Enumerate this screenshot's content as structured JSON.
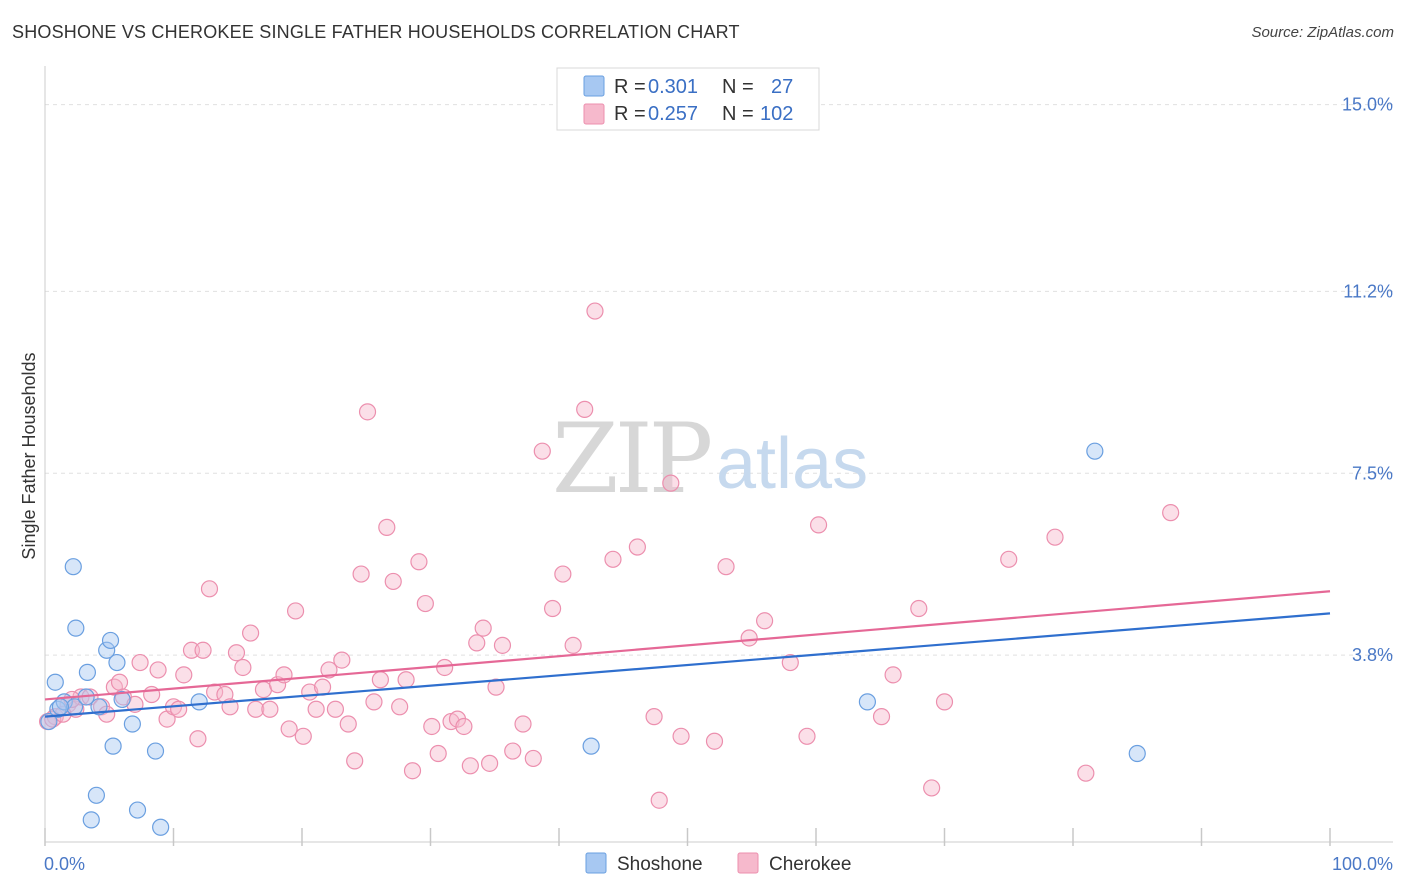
{
  "title": "SHOSHONE VS CHEROKEE SINGLE FATHER HOUSEHOLDS CORRELATION CHART",
  "source": "Source: ZipAtlas.com",
  "watermark": {
    "zip": "ZIP",
    "atlas": "atlas"
  },
  "legend": {
    "rows": [
      {
        "r_label": "R =",
        "r_value": "0.301",
        "n_label": "N =",
        "n_value": "27",
        "color": "#a7c8f2"
      },
      {
        "r_label": "R =",
        "r_value": "0.257",
        "n_label": "N =",
        "n_value": "102",
        "color": "#f6b9cc"
      }
    ]
  },
  "bottom_legend": [
    {
      "label": "Shoshone",
      "color": "#a7c8f2"
    },
    {
      "label": "Cherokee",
      "color": "#f6b9cc"
    }
  ],
  "chart_data": {
    "type": "scatter",
    "title": "SHOSHONE VS CHEROKEE SINGLE FATHER HOUSEHOLDS CORRELATION CHART",
    "xlabel": "",
    "ylabel": "Single Father Households",
    "xlim": [
      0,
      100
    ],
    "ylim": [
      0,
      15.5
    ],
    "x_tick_labels": [
      "0.0%",
      "100.0%"
    ],
    "y_ticks": [
      3.8,
      7.5,
      11.2,
      15.0
    ],
    "y_tick_labels": [
      "3.8%",
      "7.5%",
      "11.2%",
      "15.0%"
    ],
    "grid": true,
    "legend_position": "top-center",
    "series": [
      {
        "name": "Shoshone",
        "color": "#6a9fe0",
        "fill": "#a7c8f2",
        "trend": {
          "x": [
            0,
            100
          ],
          "y": [
            2.55,
            4.65
          ],
          "color": "#2f6fce"
        },
        "points": [
          [
            0.3,
            2.45
          ],
          [
            1.0,
            2.7
          ],
          [
            1.5,
            2.85
          ],
          [
            0.8,
            3.25
          ],
          [
            2.3,
            2.75
          ],
          [
            3.2,
            2.95
          ],
          [
            4.2,
            2.75
          ],
          [
            2.2,
            5.6
          ],
          [
            2.4,
            4.35
          ],
          [
            3.3,
            3.45
          ],
          [
            4.8,
            3.9
          ],
          [
            5.1,
            4.1
          ],
          [
            5.6,
            3.65
          ],
          [
            6.0,
            2.9
          ],
          [
            6.8,
            2.4
          ],
          [
            5.3,
            1.95
          ],
          [
            8.6,
            1.85
          ],
          [
            4.0,
            0.95
          ],
          [
            3.6,
            0.45
          ],
          [
            7.2,
            0.65
          ],
          [
            9.0,
            0.3
          ],
          [
            12.0,
            2.85
          ],
          [
            42.5,
            1.95
          ],
          [
            64.0,
            2.85
          ],
          [
            85.0,
            1.8
          ],
          [
            81.7,
            7.95
          ],
          [
            1.2,
            2.75
          ]
        ]
      },
      {
        "name": "Cherokee",
        "color": "#ec8fae",
        "fill": "#f6b9cc",
        "trend": {
          "x": [
            0,
            100
          ],
          "y": [
            2.9,
            5.1
          ],
          "color": "#e56896"
        },
        "points": [
          [
            0.2,
            2.45
          ],
          [
            0.8,
            2.55
          ],
          [
            1.8,
            2.8
          ],
          [
            2.4,
            2.7
          ],
          [
            2.8,
            2.95
          ],
          [
            3.5,
            2.95
          ],
          [
            4.4,
            2.75
          ],
          [
            4.8,
            2.6
          ],
          [
            5.4,
            3.15
          ],
          [
            5.8,
            3.25
          ],
          [
            6.1,
            2.95
          ],
          [
            7.0,
            2.8
          ],
          [
            7.4,
            3.65
          ],
          [
            8.3,
            3.0
          ],
          [
            8.8,
            3.5
          ],
          [
            9.5,
            2.5
          ],
          [
            10.0,
            2.75
          ],
          [
            10.4,
            2.7
          ],
          [
            10.8,
            3.4
          ],
          [
            11.4,
            3.9
          ],
          [
            11.9,
            2.1
          ],
          [
            12.3,
            3.9
          ],
          [
            12.8,
            5.15
          ],
          [
            13.2,
            3.05
          ],
          [
            14.0,
            3.0
          ],
          [
            14.4,
            2.75
          ],
          [
            14.9,
            3.85
          ],
          [
            15.4,
            3.55
          ],
          [
            16.0,
            4.25
          ],
          [
            16.4,
            2.7
          ],
          [
            17.0,
            3.1
          ],
          [
            17.5,
            2.7
          ],
          [
            18.1,
            3.2
          ],
          [
            18.6,
            3.4
          ],
          [
            19.0,
            2.3
          ],
          [
            19.5,
            4.7
          ],
          [
            20.1,
            2.15
          ],
          [
            20.6,
            3.05
          ],
          [
            21.1,
            2.7
          ],
          [
            21.6,
            3.15
          ],
          [
            22.1,
            3.5
          ],
          [
            22.6,
            2.7
          ],
          [
            23.1,
            3.7
          ],
          [
            23.6,
            2.4
          ],
          [
            24.1,
            1.65
          ],
          [
            24.6,
            5.45
          ],
          [
            25.1,
            8.75
          ],
          [
            25.6,
            2.85
          ],
          [
            26.1,
            3.3
          ],
          [
            26.6,
            6.4
          ],
          [
            27.1,
            5.3
          ],
          [
            27.6,
            2.75
          ],
          [
            28.1,
            3.3
          ],
          [
            28.6,
            1.45
          ],
          [
            29.1,
            5.7
          ],
          [
            29.6,
            4.85
          ],
          [
            30.1,
            2.35
          ],
          [
            30.6,
            1.8
          ],
          [
            31.1,
            3.55
          ],
          [
            31.6,
            2.45
          ],
          [
            32.1,
            2.5
          ],
          [
            32.6,
            2.35
          ],
          [
            33.1,
            1.55
          ],
          [
            33.6,
            4.05
          ],
          [
            34.1,
            4.35
          ],
          [
            34.6,
            1.6
          ],
          [
            35.1,
            3.15
          ],
          [
            35.6,
            4.0
          ],
          [
            36.4,
            1.85
          ],
          [
            37.2,
            2.4
          ],
          [
            38.0,
            1.7
          ],
          [
            38.7,
            7.95
          ],
          [
            39.5,
            4.75
          ],
          [
            40.3,
            5.45
          ],
          [
            41.1,
            4.0
          ],
          [
            42.0,
            8.8
          ],
          [
            42.8,
            10.8
          ],
          [
            44.2,
            5.75
          ],
          [
            46.1,
            6.0
          ],
          [
            47.4,
            2.55
          ],
          [
            47.8,
            0.85
          ],
          [
            48.7,
            7.3
          ],
          [
            49.5,
            2.15
          ],
          [
            52.1,
            2.05
          ],
          [
            53.0,
            5.6
          ],
          [
            54.8,
            4.15
          ],
          [
            56.0,
            4.5
          ],
          [
            58.0,
            3.65
          ],
          [
            59.3,
            2.15
          ],
          [
            60.2,
            6.45
          ],
          [
            65.1,
            2.55
          ],
          [
            66.0,
            3.4
          ],
          [
            68.0,
            4.75
          ],
          [
            69.0,
            1.1
          ],
          [
            70.0,
            2.85
          ],
          [
            75.0,
            5.75
          ],
          [
            78.6,
            6.2
          ],
          [
            81.0,
            1.4
          ],
          [
            87.6,
            6.7
          ],
          [
            0.6,
            2.5
          ],
          [
            1.4,
            2.6
          ],
          [
            2.1,
            2.9
          ]
        ]
      }
    ]
  }
}
